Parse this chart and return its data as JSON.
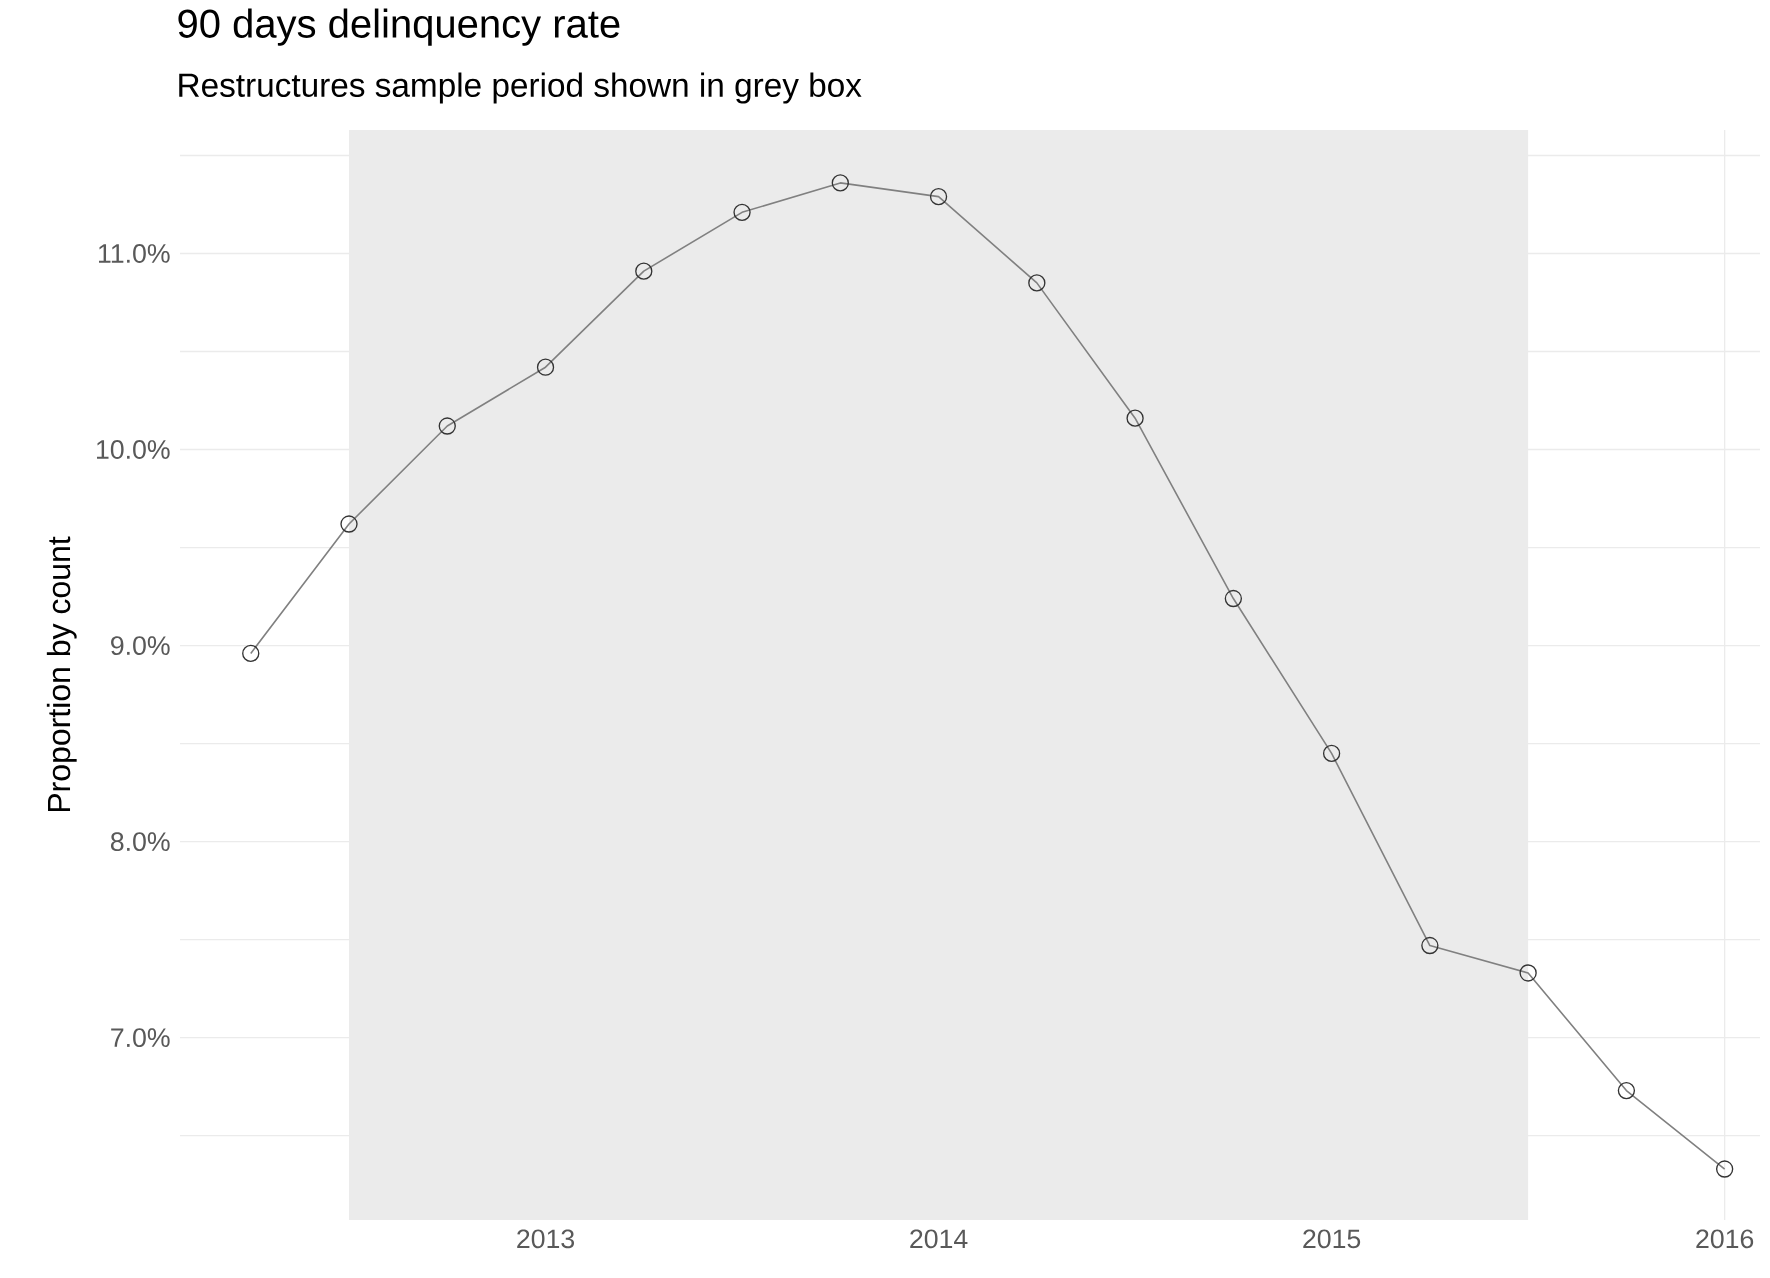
{
  "chart_data": {
    "type": "line",
    "title": "90 days delinquency rate",
    "subtitle": "Restructures sample period shown in grey box",
    "ylabel": "Proportion by count",
    "x": [
      2012.25,
      2012.5,
      2012.75,
      2013,
      2013.25,
      2013.5,
      2013.75,
      2014,
      2014.25,
      2014.5,
      2014.75,
      2015,
      2015.25,
      2015.5,
      2015.75,
      2016
    ],
    "series": [
      {
        "color": "#808080",
        "values": [
          8.96,
          9.62,
          10.12,
          10.42,
          10.91,
          11.21,
          11.36,
          11.29,
          10.85,
          10.16,
          9.24,
          8.45,
          7.47,
          7.33,
          6.73,
          6.33
        ]
      }
    ],
    "marker": "circle",
    "line_style": "solid",
    "grid": true,
    "xlim": [
      2012.07,
      2016.09
    ],
    "xticks": [
      2013,
      2014,
      2015,
      2016
    ],
    "ylim": [
      6.07,
      11.63
    ],
    "yticks": [
      {
        "value": 6.5,
        "label": null
      },
      {
        "value": 7,
        "label": "7.0%"
      },
      {
        "value": 7.5,
        "label": null
      },
      {
        "value": 8,
        "label": "8.0%"
      },
      {
        "value": 8.5,
        "label": null
      },
      {
        "value": 9,
        "label": "9.0%"
      },
      {
        "value": 9.5,
        "label": null
      },
      {
        "value": 10,
        "label": "10.0%"
      },
      {
        "value": 10.5,
        "label": null
      },
      {
        "value": 11,
        "label": "11.0%"
      },
      {
        "value": 11.5,
        "label": null
      }
    ],
    "bands": [
      {
        "axis": "x",
        "from": 2012.5,
        "to": 2015.5,
        "color": "#ebebeb"
      }
    ]
  }
}
